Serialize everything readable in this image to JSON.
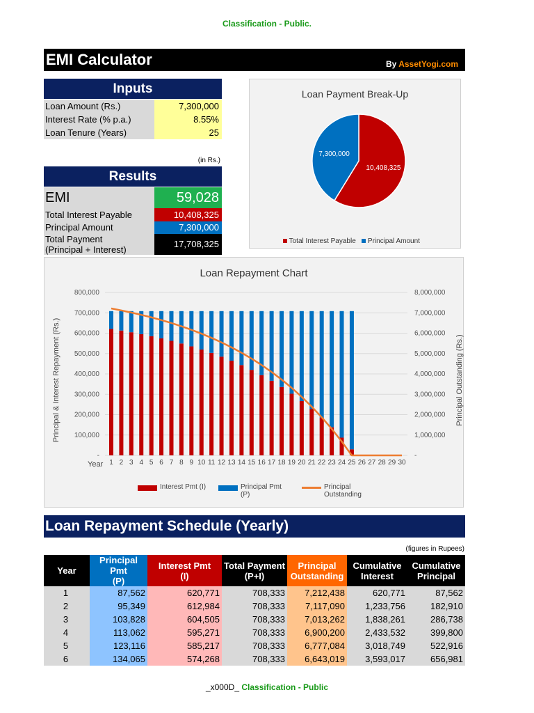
{
  "classification_top": "Classification - Public.",
  "classification_bottom_prefix": "_x000D_",
  "classification_bottom": "Classification - Public",
  "header": {
    "title": "EMI Calculator",
    "by": "By",
    "brand": "AssetYogi.com"
  },
  "inputs": {
    "title": "Inputs",
    "rows": [
      {
        "label": "Loan Amount (Rs.)",
        "value": "7,300,000"
      },
      {
        "label": "Interest Rate (% p.a.)",
        "value": "8.55%"
      },
      {
        "label": "Loan Tenure (Years)",
        "value": "25"
      }
    ]
  },
  "results": {
    "unit_note": "(in Rs.)",
    "title": "Results",
    "emi_label": "EMI",
    "emi_value": "59,028",
    "interest_label": "Total Interest Payable",
    "interest_value": "10,408,325",
    "principal_label": "Principal Amount",
    "principal_value": "7,300,000",
    "total_label_1": "Total Payment",
    "total_label_2": "(Principal + Interest)",
    "total_value": "17,708,325"
  },
  "colors": {
    "red": "#c00000",
    "blue": "#0070c0",
    "orange": "#ed7d31",
    "green": "#1fb050",
    "navy": "#0b2160",
    "yellow": "#ffff99"
  },
  "chart_data": [
    {
      "type": "pie",
      "title": "Loan Payment Break-Up",
      "slices": [
        {
          "name": "Total Interest Payable",
          "value": 10408325,
          "label": "10,408,325",
          "color": "#c00000"
        },
        {
          "name": "Principal Amount",
          "value": 7300000,
          "label": "7,300,000",
          "color": "#0070c0"
        }
      ],
      "legend": "bottom"
    },
    {
      "type": "bar+line",
      "title": "Loan Repayment Chart",
      "xlabel": "Year",
      "ylabel": "Principal & Interest Repayment (Rs.)",
      "y2label": "Principal Outstanding (Rs.)",
      "ylim": [
        0,
        800000
      ],
      "y2lim": [
        0,
        8000000
      ],
      "yticks": [
        "-",
        "100,000",
        "200,000",
        "300,000",
        "400,000",
        "500,000",
        "600,000",
        "700,000",
        "800,000"
      ],
      "y2ticks": [
        "-",
        "1,000,000",
        "2,000,000",
        "3,000,000",
        "4,000,000",
        "5,000,000",
        "6,000,000",
        "7,000,000",
        "8,000,000"
      ],
      "x": [
        1,
        2,
        3,
        4,
        5,
        6,
        7,
        8,
        9,
        10,
        11,
        12,
        13,
        14,
        15,
        16,
        17,
        18,
        19,
        20,
        21,
        22,
        23,
        24,
        25,
        26,
        27,
        28,
        29,
        30
      ],
      "series": [
        {
          "name": "Interest Pmt (I)",
          "type": "stacked-bar",
          "color": "#c00000",
          "values": [
            620771,
            612984,
            604505,
            595271,
            585217,
            574268,
            562348,
            549370,
            535238,
            519850,
            503093,
            484847,
            464979,
            443345,
            419788,
            394136,
            366204,
            335789,
            302670,
            266606,
            227337,
            184577,
            138015,
            87314,
            29802,
            0,
            0,
            0,
            0,
            0
          ]
        },
        {
          "name": "Principal Pmt (P)",
          "type": "stacked-bar",
          "color": "#0070c0",
          "values": [
            87562,
            95349,
            103828,
            113062,
            123116,
            134065,
            145985,
            158963,
            173095,
            188483,
            205240,
            223486,
            243354,
            264988,
            288545,
            314197,
            342129,
            372544,
            405663,
            441727,
            480996,
            523756,
            570318,
            621019,
            678531,
            0,
            0,
            0,
            0,
            0
          ]
        },
        {
          "name": "Principal Outstanding",
          "type": "line",
          "axis": "right",
          "color": "#ed7d31",
          "values": [
            7212438,
            7117090,
            7013262,
            6900200,
            6777084,
            6643019,
            6497034,
            6338071,
            6164976,
            5976493,
            5771253,
            5547767,
            5304413,
            5039425,
            4750880,
            4436683,
            4094554,
            3722010,
            3316347,
            2874620,
            2393624,
            1869868,
            1299550,
            678531,
            0,
            0,
            0,
            0,
            0,
            0
          ]
        }
      ],
      "legend": "bottom",
      "grid": true
    }
  ],
  "schedule": {
    "title": "Loan Repayment Schedule (Yearly)",
    "note": "(figures in Rupees)",
    "headers": [
      [
        "Year",
        ""
      ],
      [
        "Principal Pmt",
        "(P)"
      ],
      [
        "Interest Pmt",
        "(I)"
      ],
      [
        "Total Payment",
        "(P+I)"
      ],
      [
        "Principal",
        "Outstanding"
      ],
      [
        "Cumulative",
        "Interest"
      ],
      [
        "Cumulative",
        "Principal"
      ]
    ],
    "rows": [
      [
        "1",
        "87,562",
        "620,771",
        "708,333",
        "7,212,438",
        "620,771",
        "87,562"
      ],
      [
        "2",
        "95,349",
        "612,984",
        "708,333",
        "7,117,090",
        "1,233,756",
        "182,910"
      ],
      [
        "3",
        "103,828",
        "604,505",
        "708,333",
        "7,013,262",
        "1,838,261",
        "286,738"
      ],
      [
        "4",
        "113,062",
        "595,271",
        "708,333",
        "6,900,200",
        "2,433,532",
        "399,800"
      ],
      [
        "5",
        "123,116",
        "585,217",
        "708,333",
        "6,777,084",
        "3,018,749",
        "522,916"
      ],
      [
        "6",
        "134,065",
        "574,268",
        "708,333",
        "6,643,019",
        "3,593,017",
        "656,981"
      ]
    ]
  }
}
